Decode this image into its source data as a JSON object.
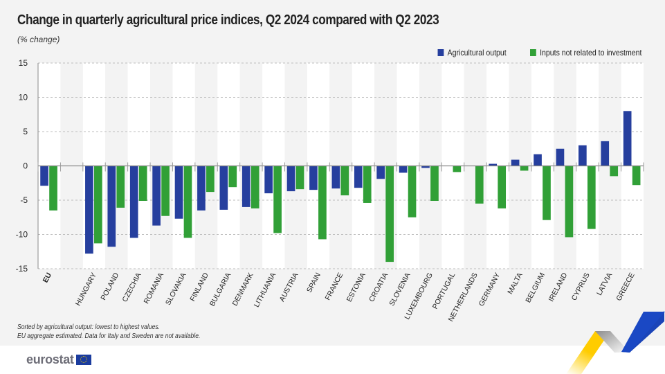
{
  "header": {
    "title": "Change in quarterly agricultural price indices, Q2 2024 compared with Q2 2023",
    "subtitle": "(% change)"
  },
  "legend": [
    {
      "label": "Agricultural output",
      "color": "#263f9e"
    },
    {
      "label": "Inputs not related to investment",
      "color": "#31a037"
    }
  ],
  "footer": {
    "note1": "Sorted by agricultural output: lowest to highest values.",
    "note2": "EU aggregate estimated. Data for Italy and Sweden are not available.",
    "logo_text": "eurostat"
  },
  "chart_data": {
    "type": "bar",
    "title": "Change in quarterly agricultural price indices, Q2 2024 compared with Q2 2023",
    "subtitle": "(% change)",
    "xlabel": "",
    "ylabel": "% change",
    "ylim": [
      -15,
      15
    ],
    "yticks": [
      15,
      10,
      5,
      0,
      -5,
      -10,
      -15
    ],
    "grid": true,
    "legend_position": "top-right",
    "categories": [
      "EU",
      "",
      "HUNGARY",
      "POLAND",
      "CZECHIA",
      "ROMANIA",
      "SLOVAKIA",
      "FINLAND",
      "BULGARIA",
      "DENMARK",
      "LITHUANIA",
      "AUSTRIA",
      "SPAIN",
      "FRANCE",
      "ESTONIA",
      "CROATIA",
      "SLOVENIA",
      "LUXEMBOURG",
      "PORTUGAL",
      "NETHERLANDS",
      "GERMANY",
      "MALTA",
      "BELGIUM",
      "IRELAND",
      "CYPRUS",
      "LATVIA",
      "GREECE"
    ],
    "series": [
      {
        "name": "Agricultural output",
        "color": "#263f9e",
        "values": [
          -2.9,
          null,
          -12.8,
          -11.8,
          -10.5,
          -8.7,
          -7.7,
          -6.5,
          -6.4,
          -6.0,
          -4.0,
          -3.7,
          -3.5,
          -3.3,
          -3.2,
          -1.9,
          -1.0,
          -0.3,
          null,
          null,
          0.3,
          0.9,
          1.7,
          2.5,
          3.0,
          3.6,
          8.0
        ]
      },
      {
        "name": "Inputs not related to investment",
        "color": "#31a037",
        "values": [
          -6.5,
          null,
          -11.3,
          -6.1,
          -5.1,
          -7.3,
          -10.5,
          -3.8,
          -3.1,
          -6.2,
          -9.8,
          -3.4,
          -10.7,
          -4.3,
          -5.4,
          -14.0,
          -7.5,
          -5.1,
          -0.9,
          -5.5,
          -6.2,
          -0.7,
          -7.9,
          -10.4,
          -9.2,
          -1.5,
          -2.8
        ]
      }
    ]
  }
}
